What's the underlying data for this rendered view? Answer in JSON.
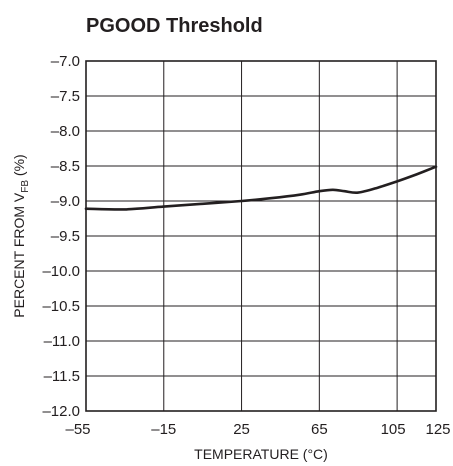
{
  "chart_data": {
    "type": "line",
    "title": "PGOOD Threshold",
    "xlabel": "TEMPERATURE (°C)",
    "ylabel": {
      "prefix": "PERCENT FROM V",
      "subscript": "FB",
      "suffix": " (%)"
    },
    "xlim": [
      -55,
      125
    ],
    "ylim": [
      -12.0,
      -7.0
    ],
    "xticks": [
      -55,
      -15,
      25,
      65,
      105,
      125
    ],
    "xtick_labels": [
      "–55",
      "–15",
      "25",
      "65",
      "105",
      "125"
    ],
    "yticks": [
      -7.0,
      -7.5,
      -8.0,
      -8.5,
      -9.0,
      -9.5,
      -10.0,
      -10.5,
      -11.0,
      -11.5,
      -12.0
    ],
    "ytick_labels": [
      "–7.0",
      "–7.5",
      "–8.0",
      "–8.5",
      "–9.0",
      "–9.5",
      "–10.0",
      "–10.5",
      "–11.0",
      "–11.5",
      "–12.0"
    ],
    "grid": true,
    "series": [
      {
        "x": [
          -55,
          -35,
          -15,
          5,
          25,
          40,
          55,
          65,
          72,
          78,
          85,
          95,
          105,
          115,
          125
        ],
        "y": [
          -9.11,
          -9.12,
          -9.08,
          -9.04,
          -9.0,
          -8.96,
          -8.91,
          -8.86,
          -8.84,
          -8.86,
          -8.88,
          -8.81,
          -8.72,
          -8.62,
          -8.51
        ]
      }
    ]
  },
  "colors": {
    "ink": "#231f20",
    "background": "#ffffff"
  }
}
